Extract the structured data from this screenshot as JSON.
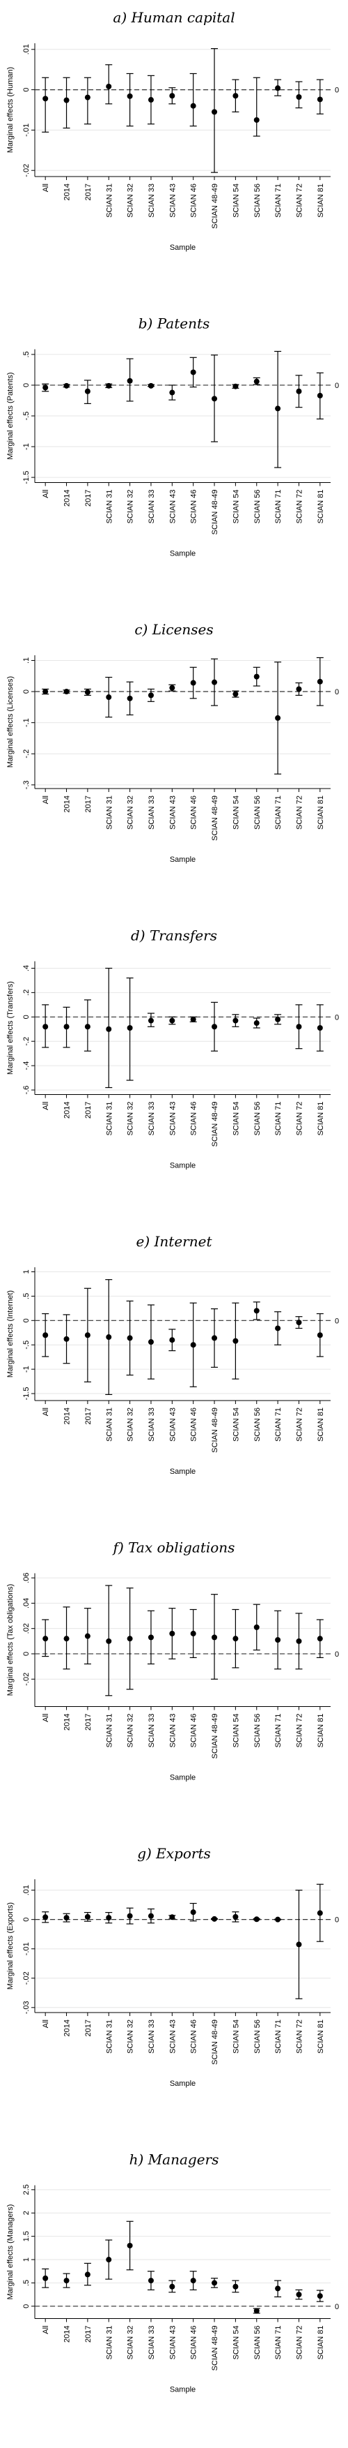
{
  "chart_data": [
    {
      "type": "scatter",
      "title": "a) Human capital",
      "xlabel": "Sample",
      "ylabel": "Marginal effects (Human)",
      "categories": [
        "All",
        "2014",
        "2017",
        "SCIAN 31",
        "SCIAN 32",
        "SCIAN 33",
        "SCIAN 43",
        "SCIAN 46",
        "SCIAN 48-49",
        "SCIAN 54",
        "SCIAN 56",
        "SCIAN 71",
        "SCIAN 72",
        "SCIAN 81"
      ],
      "yticks": [
        -0.02,
        -0.01,
        0,
        0.01
      ],
      "ytick_labels": [
        "-.02",
        "-.01",
        "0",
        ".01"
      ],
      "ylim": [
        -0.021,
        0.011
      ],
      "zero_label": "0",
      "series": [
        {
          "estimate": [
            -0.0022,
            -0.0026,
            -0.0019,
            0.0008,
            -0.0016,
            -0.0025,
            -0.0015,
            -0.004,
            -0.0055,
            -0.0015,
            -0.0075,
            0.0004,
            -0.0018,
            -0.0024
          ],
          "lower": [
            -0.0105,
            -0.0095,
            -0.0085,
            -0.0035,
            -0.009,
            -0.0085,
            -0.0035,
            -0.009,
            -0.0205,
            -0.0055,
            -0.0115,
            -0.0015,
            -0.0045,
            -0.006
          ],
          "upper": [
            0.003,
            0.003,
            0.003,
            0.0062,
            0.004,
            0.0035,
            0.0005,
            0.004,
            0.0102,
            0.0025,
            0.003,
            0.0025,
            0.002,
            0.0025
          ]
        }
      ]
    },
    {
      "type": "scatter",
      "title": "b) Patents",
      "xlabel": "Sample",
      "ylabel": "Marginal effects (Patents)",
      "categories": [
        "All",
        "2014",
        "2017",
        "SCIAN 31",
        "SCIAN 32",
        "SCIAN 33",
        "SCIAN 43",
        "SCIAN 46",
        "SCIAN 48-49",
        "SCIAN 54",
        "SCIAN 56",
        "SCIAN 71",
        "SCIAN 72",
        "SCIAN 81"
      ],
      "yticks": [
        -1.5,
        -1,
        -0.5,
        0,
        0.5
      ],
      "ytick_labels": [
        "-1.5",
        "-1",
        "-.5",
        "0",
        ".5"
      ],
      "ylim": [
        -1.55,
        0.55
      ],
      "zero_label": "0",
      "series": [
        {
          "estimate": [
            -0.04,
            -0.01,
            -0.1,
            -0.01,
            0.07,
            -0.01,
            -0.12,
            0.21,
            -0.22,
            -0.02,
            0.06,
            -0.38,
            -0.1,
            -0.17
          ],
          "lower": [
            -0.1,
            -0.03,
            -0.3,
            -0.04,
            -0.26,
            -0.02,
            -0.24,
            -0.03,
            -0.92,
            -0.05,
            0.01,
            -1.34,
            -0.36,
            -0.55
          ],
          "upper": [
            0.02,
            0.01,
            0.08,
            0.02,
            0.43,
            0.01,
            0.0,
            0.45,
            0.49,
            0.01,
            0.12,
            0.55,
            0.16,
            0.2
          ]
        }
      ]
    },
    {
      "type": "scatter",
      "title": "c) Licenses",
      "xlabel": "Sample",
      "ylabel": "Marginal effects (Licenses)",
      "categories": [
        "All",
        "2014",
        "2017",
        "SCIAN 31",
        "SCIAN 32",
        "SCIAN 33",
        "SCIAN 43",
        "SCIAN 46",
        "SCIAN 48-49",
        "SCIAN 54",
        "SCIAN 56",
        "SCIAN 71",
        "SCIAN 72",
        "SCIAN 81"
      ],
      "yticks": [
        -0.3,
        -0.2,
        -0.1,
        0,
        0.1
      ],
      "ytick_labels": [
        "-.3",
        "-.2",
        "-.1",
        "0",
        ".1"
      ],
      "ylim": [
        -0.305,
        0.11
      ],
      "zero_label": "0",
      "series": [
        {
          "estimate": [
            0.0,
            0.0,
            -0.002,
            -0.018,
            -0.022,
            -0.012,
            0.012,
            0.028,
            0.03,
            -0.008,
            0.048,
            -0.085,
            0.008,
            0.032
          ],
          "lower": [
            -0.008,
            -0.005,
            -0.012,
            -0.082,
            -0.075,
            -0.032,
            0.002,
            -0.022,
            -0.045,
            -0.018,
            0.018,
            -0.265,
            -0.012,
            -0.045
          ],
          "upper": [
            0.008,
            0.005,
            0.008,
            0.046,
            0.031,
            0.008,
            0.022,
            0.078,
            0.105,
            0.002,
            0.078,
            0.095,
            0.028,
            0.109
          ]
        }
      ]
    },
    {
      "type": "scatter",
      "title": "d) Transfers",
      "xlabel": "Sample",
      "ylabel": "Marginal effects (Transfers)",
      "categories": [
        "All",
        "2014",
        "2017",
        "SCIAN 31",
        "SCIAN 32",
        "SCIAN 33",
        "SCIAN 43",
        "SCIAN 46",
        "SCIAN 48-49",
        "SCIAN 54",
        "SCIAN 56",
        "SCIAN 71",
        "SCIAN 72",
        "SCIAN 81"
      ],
      "yticks": [
        -0.6,
        -0.4,
        -0.2,
        0,
        0.2,
        0.4
      ],
      "ytick_labels": [
        "-.6",
        "-.4",
        "-.2",
        "0",
        ".2",
        ".4"
      ],
      "ylim": [
        -0.62,
        0.44
      ],
      "zero_label": "0",
      "series": [
        {
          "estimate": [
            -0.08,
            -0.08,
            -0.08,
            -0.1,
            -0.09,
            -0.03,
            -0.03,
            -0.02,
            -0.08,
            -0.03,
            -0.05,
            -0.02,
            -0.08,
            -0.09
          ],
          "lower": [
            -0.25,
            -0.25,
            -0.28,
            -0.58,
            -0.52,
            -0.08,
            -0.06,
            -0.04,
            -0.28,
            -0.08,
            -0.09,
            -0.06,
            -0.26,
            -0.28
          ],
          "upper": [
            0.1,
            0.08,
            0.14,
            0.4,
            0.32,
            0.03,
            0.0,
            0.0,
            0.12,
            0.02,
            -0.01,
            0.02,
            0.1,
            0.1
          ]
        }
      ]
    },
    {
      "type": "scatter",
      "title": "e) Internet",
      "xlabel": "Sample",
      "ylabel": "Marginal effects (Internet)",
      "categories": [
        "All",
        "2014",
        "2017",
        "SCIAN 31",
        "SCIAN 32",
        "SCIAN 33",
        "SCIAN 43",
        "SCIAN 46",
        "SCIAN 48-49",
        "SCIAN 54",
        "SCIAN 56",
        "SCIAN 71",
        "SCIAN 72",
        "SCIAN 81"
      ],
      "yticks": [
        -1.5,
        -1,
        -0.5,
        0,
        0.5,
        1
      ],
      "ytick_labels": [
        "-1.5",
        "-1",
        "-.5",
        "0",
        ".5",
        "1"
      ],
      "ylim": [
        -1.6,
        1.05
      ],
      "zero_label": "0",
      "series": [
        {
          "estimate": [
            -0.3,
            -0.38,
            -0.3,
            -0.34,
            -0.36,
            -0.44,
            -0.4,
            -0.5,
            -0.36,
            -0.42,
            0.2,
            -0.16,
            -0.04,
            -0.3
          ],
          "lower": [
            -0.74,
            -0.88,
            -1.26,
            -1.52,
            -1.12,
            -1.2,
            -0.62,
            -1.36,
            -0.96,
            -1.2,
            0.02,
            -0.5,
            -0.16,
            -0.74
          ],
          "upper": [
            0.14,
            0.12,
            0.66,
            0.84,
            0.4,
            0.32,
            -0.18,
            0.36,
            0.24,
            0.36,
            0.38,
            0.18,
            0.08,
            0.14
          ]
        }
      ]
    },
    {
      "type": "scatter",
      "title": "f) Tax obligations",
      "xlabel": "Sample",
      "ylabel": "Marginal effects (Tax obligations)",
      "categories": [
        "All",
        "2014",
        "2017",
        "SCIAN 31",
        "SCIAN 32",
        "SCIAN 33",
        "SCIAN 43",
        "SCIAN 46",
        "SCIAN 48-49",
        "SCIAN 54",
        "SCIAN 56",
        "SCIAN 71",
        "SCIAN 72",
        "SCIAN 81"
      ],
      "yticks": [
        -0.02,
        0,
        0.02,
        0.04,
        0.06
      ],
      "ytick_labels": [
        "-.02",
        "0",
        ".02",
        ".04",
        ".06"
      ],
      "ylim": [
        -0.04,
        0.062
      ],
      "zero_label": "0",
      "series": [
        {
          "estimate": [
            0.012,
            0.012,
            0.014,
            0.01,
            0.012,
            0.013,
            0.016,
            0.016,
            0.013,
            0.012,
            0.021,
            0.011,
            0.01,
            0.012
          ],
          "lower": [
            -0.002,
            -0.012,
            -0.008,
            -0.033,
            -0.028,
            -0.008,
            -0.004,
            -0.003,
            -0.02,
            -0.011,
            0.003,
            -0.012,
            -0.012,
            -0.003
          ],
          "upper": [
            0.027,
            0.037,
            0.036,
            0.054,
            0.052,
            0.034,
            0.036,
            0.035,
            0.047,
            0.035,
            0.039,
            0.034,
            0.032,
            0.027
          ]
        }
      ]
    },
    {
      "type": "scatter",
      "title": "g) Exports",
      "xlabel": "Sample",
      "ylabel": "Marginal effects (Exports)",
      "categories": [
        "All",
        "2014",
        "2017",
        "SCIAN 31",
        "SCIAN 32",
        "SCIAN 33",
        "SCIAN 43",
        "SCIAN 46",
        "SCIAN 48-49",
        "SCIAN 54",
        "SCIAN 56",
        "SCIAN 71",
        "SCIAN 72",
        "SCIAN 81"
      ],
      "yticks": [
        -0.03,
        -0.02,
        -0.01,
        0,
        0.01
      ],
      "ytick_labels": [
        "-.03",
        "-.02",
        "-.01",
        "0",
        ".01"
      ],
      "ylim": [
        -0.031,
        0.013
      ],
      "zero_label": "0",
      "series": [
        {
          "estimate": [
            0.0008,
            0.0006,
            0.0009,
            0.0006,
            0.0012,
            0.0012,
            0.0008,
            0.0025,
            0.0002,
            0.0009,
            0.0001,
            0.0,
            -0.0085,
            0.0022
          ],
          "lower": [
            -0.001,
            -0.0008,
            -0.0006,
            -0.0012,
            -0.0015,
            -0.0012,
            0.0002,
            -0.0005,
            0.0001,
            -0.0008,
            -0.0001,
            -0.0001,
            -0.027,
            -0.0075
          ],
          "upper": [
            0.0026,
            0.002,
            0.0024,
            0.0024,
            0.0039,
            0.0036,
            0.0014,
            0.0055,
            0.0003,
            0.0026,
            0.0003,
            0.0001,
            0.01,
            0.012
          ]
        }
      ]
    },
    {
      "type": "scatter",
      "title": "h) Managers",
      "xlabel": "Sample",
      "ylabel": "Marginal effects (Managers)",
      "categories": [
        "All",
        "2014",
        "2017",
        "SCIAN 31",
        "SCIAN 32",
        "SCIAN 33",
        "SCIAN 43",
        "SCIAN 46",
        "SCIAN 48-49",
        "SCIAN 54",
        "SCIAN 56",
        "SCIAN 71",
        "SCIAN 72",
        "SCIAN 81"
      ],
      "yticks": [
        0,
        0.5,
        1,
        1.5,
        2,
        2.5
      ],
      "ytick_labels": [
        "0",
        ".5",
        "1",
        "1.5",
        "2",
        "2.5"
      ],
      "ylim": [
        -0.22,
        2.55
      ],
      "zero_label": "0",
      "series": [
        {
          "estimate": [
            0.6,
            0.55,
            0.68,
            1.0,
            1.3,
            0.55,
            0.42,
            0.55,
            0.5,
            0.42,
            -0.1,
            0.38,
            0.25,
            0.22
          ],
          "lower": [
            0.4,
            0.4,
            0.45,
            0.58,
            0.78,
            0.35,
            0.3,
            0.35,
            0.4,
            0.3,
            -0.15,
            0.2,
            0.15,
            0.1
          ],
          "upper": [
            0.8,
            0.7,
            0.92,
            1.42,
            1.82,
            0.75,
            0.55,
            0.75,
            0.6,
            0.55,
            -0.05,
            0.55,
            0.35,
            0.34
          ]
        }
      ]
    }
  ]
}
